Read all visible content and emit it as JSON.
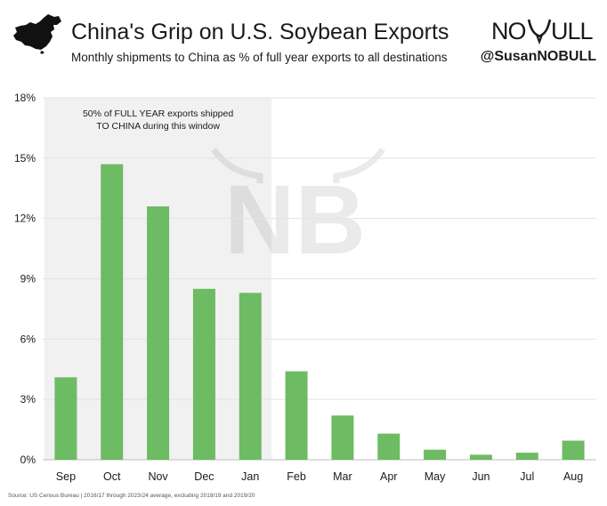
{
  "header": {
    "title": "China's Grip on U.S. Soybean Exports",
    "subtitle": "Monthly shipments to China as % of full year exports to all destinations",
    "handle": "@SusanNOBULL",
    "logo_text": "NO BULL",
    "map_icon": "china-map-icon"
  },
  "footer": {
    "source": "Source: US Census Bureau | 2016/17 through 2023/24 average, excluding 2018/19 and 2019/20"
  },
  "chart_data": {
    "type": "bar",
    "title": "China's Grip on U.S. Soybean Exports",
    "subtitle": "Monthly shipments to China as % of full year exports to all destinations",
    "xlabel": "",
    "ylabel": "",
    "categories": [
      "Sep",
      "Oct",
      "Nov",
      "Dec",
      "Jan",
      "Feb",
      "Mar",
      "Apr",
      "May",
      "Jun",
      "Jul",
      "Aug"
    ],
    "values": [
      4.1,
      14.7,
      12.6,
      8.5,
      8.3,
      4.4,
      2.2,
      1.3,
      0.5,
      0.25,
      0.35,
      0.95
    ],
    "ylim": [
      0,
      18
    ],
    "yticks": [
      0,
      3,
      6,
      9,
      12,
      15,
      18
    ],
    "ytick_labels": [
      "0%",
      "3%",
      "6%",
      "9%",
      "12%",
      "15%",
      "18%"
    ],
    "grid": true,
    "bar_color": "#6dbb63",
    "highlight": {
      "from": "Sep",
      "to": "Jan",
      "color": "#f1f1f1",
      "label_lines": [
        "50% of FULL YEAR exports shipped",
        "TO CHINA during this window"
      ]
    }
  }
}
